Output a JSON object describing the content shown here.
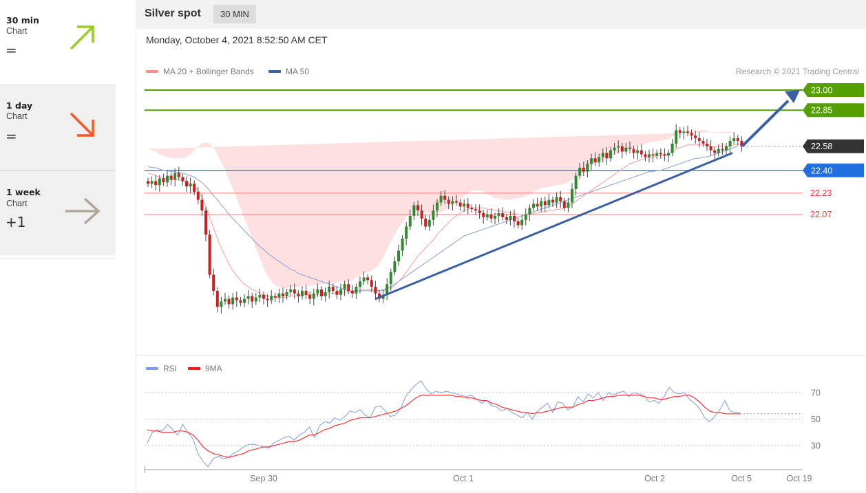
{
  "sidebar": {
    "items": [
      {
        "title": "30 min",
        "subtitle": "Chart",
        "symbol": "=",
        "arrow": "up-right-arrow-icon",
        "color": "#99cc22"
      },
      {
        "title": "1 day",
        "subtitle": "Chart",
        "symbol": "=",
        "arrow": "down-right-arrow-icon",
        "color": "#ff5522"
      },
      {
        "title": "1 week",
        "subtitle": "Chart",
        "symbol": "+1",
        "arrow": "right-arrow-icon",
        "color": "#b0a69a"
      }
    ]
  },
  "header": {
    "title": "Silver spot",
    "timeframe": "30 MIN",
    "timestamp": "Monday, October 4, 2021 8:52:50 AM CET",
    "copyright": "Research © 2021 Trading Central"
  },
  "legend": {
    "ma20": "MA 20 + Bollinger Bands",
    "ma50": "MA 50",
    "rsi": "RSI",
    "rsi_ma": "9MA"
  },
  "colors": {
    "resistance_green": "#55a000",
    "support_red": "#ff7777",
    "ma50_blue": "#2f66c8",
    "bollinger_fill": "#ffd6d6",
    "ma20_line": "#ff9a9a",
    "candle_up": "#2e8b2e",
    "candle_down": "#cc1f1f",
    "trend_arrow": "#3a5fa5",
    "current_price_bg": "#333333",
    "rsi_line": "#7f9ce8",
    "rsi_ma_line": "#ff3333"
  },
  "chart_data": [
    {
      "type": "candlestick",
      "title": "Silver spot",
      "x_tick_labels": [
        "Sep 30",
        "Oct 1",
        "Oct 2",
        "Oct 5",
        "Oct 19"
      ],
      "ylim": [
        21.3,
        23.1
      ],
      "levels": [
        {
          "value": 23.0,
          "label": "23.00",
          "kind": "resistance"
        },
        {
          "value": 22.85,
          "label": "22.85",
          "kind": "resistance"
        },
        {
          "value": 22.58,
          "label": "22.58",
          "kind": "current"
        },
        {
          "value": 22.4,
          "label": "22.40",
          "kind": "pivot"
        },
        {
          "value": 22.23,
          "label": "22.23",
          "kind": "support"
        },
        {
          "value": 22.07,
          "label": "22.07",
          "kind": "support"
        }
      ],
      "close": [
        22.3,
        22.32,
        22.29,
        22.34,
        22.31,
        22.36,
        22.33,
        22.38,
        22.35,
        22.32,
        22.28,
        22.3,
        22.24,
        22.18,
        22.1,
        21.92,
        21.62,
        21.5,
        21.38,
        21.42,
        21.44,
        21.4,
        21.45,
        21.43,
        21.41,
        21.44,
        21.46,
        21.42,
        21.45,
        21.47,
        21.44,
        21.43,
        21.46,
        21.45,
        21.48,
        21.46,
        21.49,
        21.51,
        21.48,
        21.46,
        21.5,
        21.47,
        21.44,
        21.48,
        21.51,
        21.46,
        21.49,
        21.53,
        21.5,
        21.47,
        21.51,
        21.55,
        21.5,
        21.48,
        21.53,
        21.57,
        21.6,
        21.58,
        21.53,
        21.48,
        21.44,
        21.47,
        21.55,
        21.64,
        21.72,
        21.8,
        21.89,
        21.98,
        22.06,
        22.14,
        22.1,
        22.04,
        21.98,
        22.03,
        22.1,
        22.16,
        22.21,
        22.18,
        22.15,
        22.17,
        22.16,
        22.13,
        22.15,
        22.12,
        22.11,
        22.1,
        22.08,
        22.05,
        22.07,
        22.04,
        22.06,
        22.08,
        22.05,
        22.03,
        22.06,
        22.02,
        21.99,
        22.03,
        22.07,
        22.12,
        22.15,
        22.13,
        22.17,
        22.14,
        22.18,
        22.16,
        22.2,
        22.17,
        22.12,
        22.16,
        22.26,
        22.36,
        22.42,
        22.39,
        22.45,
        22.49,
        22.46,
        22.5,
        22.53,
        22.49,
        22.55,
        22.57,
        22.58,
        22.54,
        22.57,
        22.56,
        22.53,
        22.55,
        22.52,
        22.5,
        22.52,
        22.51,
        22.53,
        22.52,
        22.51,
        22.53,
        22.6,
        22.7,
        22.68,
        22.69,
        22.68,
        22.66,
        22.64,
        22.62,
        22.6,
        22.58,
        22.55,
        22.53,
        22.56,
        22.55,
        22.58,
        22.62,
        22.64,
        22.62,
        22.58
      ],
      "ma20": [
        22.38,
        22.37,
        22.36,
        22.35,
        22.34,
        22.34,
        22.33,
        22.33,
        22.33,
        22.32,
        22.31,
        22.3,
        22.28,
        22.25,
        22.2,
        22.13,
        22.05,
        21.97,
        21.89,
        21.82,
        21.76,
        21.7,
        21.65,
        21.61,
        21.58,
        21.55,
        21.53,
        21.51,
        21.5,
        21.48,
        21.47,
        21.46,
        21.46,
        21.45,
        21.45,
        21.45,
        21.45,
        21.46,
        21.46,
        21.46,
        21.47,
        21.47,
        21.47,
        21.47,
        21.47,
        21.47,
        21.47,
        21.48,
        21.48,
        21.48,
        21.49,
        21.49,
        21.49,
        21.49,
        21.5,
        21.5,
        21.51,
        21.51,
        21.51,
        21.51,
        21.5,
        21.5,
        21.51,
        21.52,
        21.54,
        21.57,
        21.6,
        21.64,
        21.68,
        21.72,
        21.76,
        21.79,
        21.82,
        21.85,
        21.88,
        21.92,
        21.95,
        21.98,
        22.01,
        22.04,
        22.06,
        22.08,
        22.1,
        22.11,
        22.12,
        22.12,
        22.12,
        22.12,
        22.11,
        22.11,
        22.1,
        22.1,
        22.09,
        22.09,
        22.08,
        22.08,
        22.07,
        22.07,
        22.07,
        22.07,
        22.08,
        22.08,
        22.09,
        22.09,
        22.1,
        22.1,
        22.11,
        22.11,
        22.12,
        22.13,
        22.15,
        22.17,
        22.19,
        22.21,
        22.23,
        22.25,
        22.27,
        22.29,
        22.31,
        22.33,
        22.35,
        22.37,
        22.39,
        22.41,
        22.43,
        22.45,
        22.46,
        22.47,
        22.48,
        22.49,
        22.5,
        22.5,
        22.51,
        22.51,
        22.52,
        22.52,
        22.54,
        22.56,
        22.57,
        22.58,
        22.59,
        22.59,
        22.59,
        22.59,
        22.59,
        22.59,
        22.58,
        22.58,
        22.58,
        22.58,
        22.58,
        22.58,
        22.59,
        22.59,
        22.59
      ],
      "ma50": [
        22.43,
        22.42,
        22.42,
        22.41,
        22.4,
        22.4,
        22.39,
        22.39,
        22.38,
        22.38,
        22.37,
        22.36,
        22.35,
        22.33,
        22.31,
        22.28,
        22.25,
        22.21,
        22.18,
        22.14,
        22.11,
        22.07,
        22.04,
        22.01,
        21.98,
        21.95,
        21.92,
        21.89,
        21.86,
        21.83,
        21.81,
        21.78,
        21.76,
        21.74,
        21.72,
        21.7,
        21.68,
        21.66,
        21.65,
        21.63,
        21.62,
        21.61,
        21.6,
        21.59,
        21.58,
        21.57,
        21.56,
        21.55,
        21.54,
        21.53,
        21.52,
        21.51,
        21.5,
        21.5,
        21.5,
        21.5,
        21.5,
        21.5,
        21.5,
        21.5,
        21.5,
        21.51,
        21.52,
        21.53,
        21.55,
        21.57,
        21.59,
        21.61,
        21.63,
        21.65,
        21.67,
        21.69,
        21.71,
        21.73,
        21.75,
        21.77,
        21.79,
        21.81,
        21.83,
        21.85,
        21.87,
        21.89,
        21.91,
        21.92,
        21.93,
        21.94,
        21.95,
        21.96,
        21.97,
        21.98,
        21.99,
        22.0,
        22.01,
        22.02,
        22.03,
        22.04,
        22.05,
        22.06,
        22.07,
        22.08,
        22.09,
        22.1,
        22.11,
        22.12,
        22.13,
        22.14,
        22.15,
        22.16,
        22.17,
        22.18,
        22.19,
        22.2,
        22.21,
        22.22,
        22.23,
        22.24,
        22.25,
        22.26,
        22.27,
        22.28,
        22.29,
        22.3,
        22.31,
        22.32,
        22.33,
        22.34,
        22.35,
        22.36,
        22.37,
        22.38,
        22.39,
        22.39,
        22.4,
        22.4,
        22.41,
        22.42,
        22.43,
        22.44,
        22.45,
        22.46,
        22.47,
        22.48,
        22.49,
        22.49,
        22.5,
        22.5,
        22.51,
        22.52,
        22.53,
        22.54,
        22.55,
        22.56,
        22.57,
        22.58
      ],
      "band_width": [
        0.18,
        0.18,
        0.18,
        0.17,
        0.17,
        0.16,
        0.16,
        0.16,
        0.16,
        0.17,
        0.19,
        0.22,
        0.27,
        0.33,
        0.4,
        0.48,
        0.55,
        0.6,
        0.63,
        0.64,
        0.64,
        0.63,
        0.61,
        0.58,
        0.54,
        0.49,
        0.44,
        0.38,
        0.32,
        0.26,
        0.2,
        0.15,
        0.11,
        0.09,
        0.08,
        0.07,
        0.07,
        0.07,
        0.07,
        0.07,
        0.07,
        0.07,
        0.07,
        0.07,
        0.08,
        0.08,
        0.08,
        0.08,
        0.08,
        0.08,
        0.08,
        0.08,
        0.08,
        0.09,
        0.1,
        0.11,
        0.12,
        0.13,
        0.14,
        0.16,
        0.2,
        0.25,
        0.3,
        0.35,
        0.38,
        0.4,
        0.41,
        0.41,
        0.4,
        0.38,
        0.35,
        0.31,
        0.27,
        0.23,
        0.19,
        0.16,
        0.14,
        0.12,
        0.11,
        0.1,
        0.1,
        0.1,
        0.11,
        0.12,
        0.13,
        0.13,
        0.13,
        0.12,
        0.11,
        0.1,
        0.09,
        0.09,
        0.09,
        0.09,
        0.1,
        0.11,
        0.12,
        0.13,
        0.14,
        0.15,
        0.16,
        0.17,
        0.18,
        0.18,
        0.18,
        0.18,
        0.18,
        0.18,
        0.18,
        0.18,
        0.18,
        0.18,
        0.18,
        0.18,
        0.18,
        0.18,
        0.18,
        0.18,
        0.17,
        0.17,
        0.16,
        0.15,
        0.14,
        0.13,
        0.12,
        0.12,
        0.11,
        0.11,
        0.11,
        0.11,
        0.11,
        0.11,
        0.11,
        0.11,
        0.11,
        0.11,
        0.11,
        0.11,
        0.11,
        0.11,
        0.11,
        0.11,
        0.11,
        0.11,
        0.11,
        0.11,
        0.1,
        0.1,
        0.1,
        0.1,
        0.1,
        0.1,
        0.1
      ]
    },
    {
      "type": "line",
      "series": [
        {
          "name": "RSI"
        },
        {
          "name": "9MA"
        }
      ],
      "y_tick_labels": [
        "70",
        "50",
        "30"
      ],
      "yticks": [
        70,
        50,
        30
      ],
      "ylim": [
        10,
        85
      ],
      "rsi": [
        32,
        40,
        42,
        41,
        46,
        42,
        38,
        46,
        40,
        35,
        24,
        18,
        14,
        20,
        22,
        20,
        21,
        24,
        26,
        29,
        31,
        31,
        30,
        29,
        28,
        32,
        34,
        36,
        37,
        34,
        38,
        40,
        44,
        36,
        45,
        48,
        47,
        51,
        49,
        52,
        56,
        55,
        57,
        53,
        51,
        59,
        60,
        56,
        52,
        53,
        58,
        67,
        72,
        76,
        79,
        73,
        69,
        71,
        70,
        71,
        70,
        69,
        68,
        67,
        68,
        65,
        62,
        64,
        60,
        59,
        56,
        58,
        55,
        53,
        51,
        55,
        50,
        56,
        59,
        62,
        55,
        63,
        62,
        57,
        59,
        67,
        63,
        69,
        66,
        70,
        64,
        70,
        68,
        70,
        71,
        67,
        70,
        69,
        68,
        63,
        64,
        62,
        67,
        74,
        70,
        69,
        70,
        65,
        62,
        58,
        51,
        48,
        52,
        57,
        64,
        56,
        55,
        55
      ],
      "rsi_ma": [
        42,
        41,
        41,
        40,
        40,
        40,
        41,
        41,
        40,
        38,
        34,
        29,
        26,
        24,
        23,
        22,
        21,
        22,
        23,
        24,
        26,
        27,
        28,
        29,
        29,
        30,
        31,
        32,
        33,
        33,
        34,
        36,
        38,
        38,
        40,
        42,
        43,
        45,
        46,
        47,
        49,
        50,
        51,
        51,
        51,
        52,
        53,
        54,
        55,
        56,
        58,
        60,
        63,
        66,
        68,
        68,
        68,
        68,
        68,
        68,
        68,
        67,
        67,
        66,
        66,
        65,
        64,
        64,
        62,
        61,
        59,
        58,
        57,
        56,
        55,
        55,
        54,
        55,
        55,
        56,
        57,
        58,
        59,
        59,
        59,
        61,
        62,
        64,
        64,
        65,
        66,
        67,
        67,
        68,
        68,
        68,
        68,
        68,
        67,
        66,
        66,
        65,
        65,
        66,
        67,
        67,
        68,
        68,
        66,
        63,
        59,
        56,
        55,
        55,
        54,
        54,
        54,
        54
      ]
    }
  ]
}
